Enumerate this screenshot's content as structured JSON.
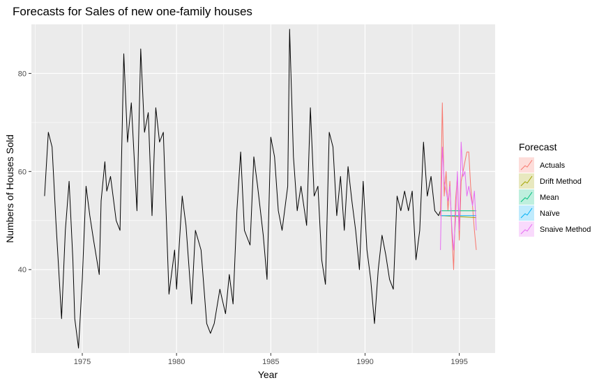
{
  "chart_data": {
    "type": "line",
    "title": "Forecasts for Sales of new one-family houses",
    "xlabel": "Year",
    "ylabel": "Numbers of Houses Sold",
    "xlim": [
      1972.3,
      1996.9
    ],
    "ylim": [
      23,
      90
    ],
    "x_ticks": [
      1975,
      1980,
      1985,
      1990,
      1995
    ],
    "y_ticks": [
      40,
      60,
      80
    ],
    "grid": true,
    "legend": {
      "title": "Forecast",
      "position": "right",
      "entries": [
        "Actuals",
        "Drift Method",
        "Mean",
        "Naïve",
        "Snaive Method"
      ]
    },
    "series": [
      {
        "name": "",
        "color": "#000000",
        "x": [
          1973.0,
          1973.2,
          1973.4,
          1973.6,
          1973.9,
          1974.1,
          1974.3,
          1974.5,
          1974.6,
          1974.8,
          1975.0,
          1975.2,
          1975.4,
          1975.6,
          1975.9,
          1976.0,
          1976.2,
          1976.3,
          1976.5,
          1976.8,
          1977.0,
          1977.2,
          1977.4,
          1977.6,
          1977.9,
          1978.1,
          1978.3,
          1978.5,
          1978.7,
          1978.9,
          1979.1,
          1979.3,
          1979.6,
          1979.9,
          1980.0,
          1980.3,
          1980.5,
          1980.8,
          1981.0,
          1981.3,
          1981.6,
          1981.8,
          1982.0,
          1982.3,
          1982.6,
          1982.8,
          1983.0,
          1983.2,
          1983.4,
          1983.6,
          1983.9,
          1984.1,
          1984.3,
          1984.6,
          1984.8,
          1985.0,
          1985.2,
          1985.4,
          1985.6,
          1985.9,
          1986.0,
          1986.2,
          1986.4,
          1986.6,
          1986.9,
          1987.1,
          1987.3,
          1987.5,
          1987.7,
          1987.9,
          1988.1,
          1988.3,
          1988.5,
          1988.7,
          1988.9,
          1989.1,
          1989.3,
          1989.5,
          1989.7,
          1989.9,
          1990.1,
          1990.3,
          1990.5,
          1990.7,
          1990.9,
          1991.1,
          1991.3,
          1991.5,
          1991.7,
          1991.9,
          1992.1,
          1992.3,
          1992.5,
          1992.7,
          1992.9,
          1993.1,
          1993.3,
          1993.5,
          1993.7,
          1993.9,
          1994.0
        ],
        "y": [
          55,
          68,
          65,
          50,
          30,
          48,
          58,
          42,
          30,
          24,
          38,
          57,
          51,
          46,
          39,
          54,
          62,
          56,
          59,
          50,
          48,
          84,
          66,
          74,
          52,
          85,
          68,
          72,
          51,
          73,
          66,
          68,
          35,
          44,
          36,
          55,
          49,
          33,
          48,
          44,
          29,
          27,
          29,
          36,
          31,
          39,
          33,
          52,
          64,
          48,
          45,
          63,
          57,
          47,
          38,
          67,
          63,
          52,
          48,
          57,
          89,
          63,
          52,
          57,
          49,
          73,
          55,
          57,
          42,
          37,
          68,
          65,
          51,
          59,
          48,
          61,
          54,
          48,
          40,
          58,
          44,
          38,
          29,
          40,
          47,
          43,
          38,
          36,
          55,
          52,
          56,
          52,
          56,
          42,
          48,
          66,
          55,
          59,
          52,
          51,
          52
        ]
      },
      {
        "name": "Actuals",
        "color": "#F8766D",
        "x": [
          1994.0,
          1994.1,
          1994.2,
          1994.3,
          1994.4,
          1994.5,
          1994.6,
          1994.7,
          1994.8,
          1994.9,
          1995.0,
          1995.1,
          1995.2,
          1995.3,
          1995.4,
          1995.5,
          1995.6,
          1995.7,
          1995.8,
          1995.9
        ],
        "y": [
          51,
          74,
          55,
          60,
          52,
          58,
          48,
          40,
          54,
          59,
          46,
          58,
          60,
          62,
          64,
          64,
          57,
          53,
          48,
          44
        ]
      },
      {
        "name": "Drift Method",
        "color": "#A3A500",
        "x": [
          1994.0,
          1995.9
        ],
        "y": [
          51,
          50.6
        ]
      },
      {
        "name": "Mean",
        "color": "#00BF7D",
        "x": [
          1994.0,
          1995.9
        ],
        "y": [
          52,
          52
        ]
      },
      {
        "name": "Naïve",
        "color": "#00B0F6",
        "x": [
          1994.0,
          1995.9
        ],
        "y": [
          51,
          51
        ]
      },
      {
        "name": "Snaive Method",
        "color": "#E76BF3",
        "x": [
          1994.0,
          1994.1,
          1994.2,
          1994.3,
          1994.4,
          1994.5,
          1994.6,
          1994.7,
          1994.8,
          1994.9,
          1995.0,
          1995.1,
          1995.2,
          1995.3,
          1995.4,
          1995.5,
          1995.6,
          1995.7,
          1995.8,
          1995.9
        ],
        "y": [
          44,
          65,
          58,
          56,
          54,
          57,
          49,
          44,
          50,
          60,
          48,
          66,
          59,
          60,
          55,
          57,
          55,
          53,
          56,
          48
        ]
      }
    ]
  }
}
